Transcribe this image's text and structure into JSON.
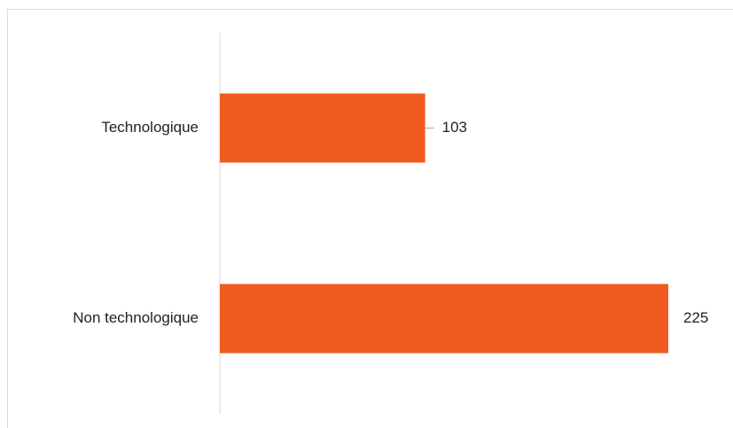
{
  "chart_data": {
    "type": "bar",
    "orientation": "horizontal",
    "categories": [
      "Technologique",
      "Non technologique"
    ],
    "values": [
      103,
      225
    ],
    "color": "#f05a1e"
  }
}
